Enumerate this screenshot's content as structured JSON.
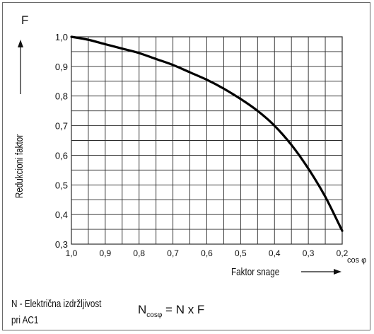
{
  "chart_data": {
    "type": "line",
    "y_symbol": "F",
    "x_symbol": "cos φ",
    "xlabel": "Faktor snage",
    "ylabel": "Redukcioni faktor",
    "x_ticks": [
      "1,0",
      "0,9",
      "0,8",
      "0,7",
      "0,6",
      "0,5",
      "0,4",
      "0,3",
      "0,2"
    ],
    "y_ticks": [
      "0,3",
      "0,4",
      "0,5",
      "0,6",
      "0,7",
      "0,8",
      "0,9",
      "1,0"
    ],
    "xlim": [
      1.0,
      0.2
    ],
    "ylim": [
      0.3,
      1.0
    ],
    "x_reversed": true,
    "grid": true,
    "series": [
      {
        "x": [
          1.0,
          0.95,
          0.9,
          0.85,
          0.8,
          0.75,
          0.7,
          0.65,
          0.6,
          0.55,
          0.5,
          0.45,
          0.4,
          0.35,
          0.3,
          0.25,
          0.2
        ],
        "y": [
          1.0,
          0.99,
          0.975,
          0.96,
          0.945,
          0.925,
          0.905,
          0.88,
          0.855,
          0.825,
          0.79,
          0.75,
          0.7,
          0.635,
          0.555,
          0.46,
          0.345
        ]
      }
    ]
  },
  "notes": {
    "line1": "N - Električna izdržljivost",
    "line2": "pri AC1",
    "formula_n": "N",
    "formula_sub": "cosφ",
    "formula_rest": " = N x F"
  },
  "colors": {
    "grid": "#2b2b2b",
    "curve": "#000000",
    "text": "#111111"
  }
}
